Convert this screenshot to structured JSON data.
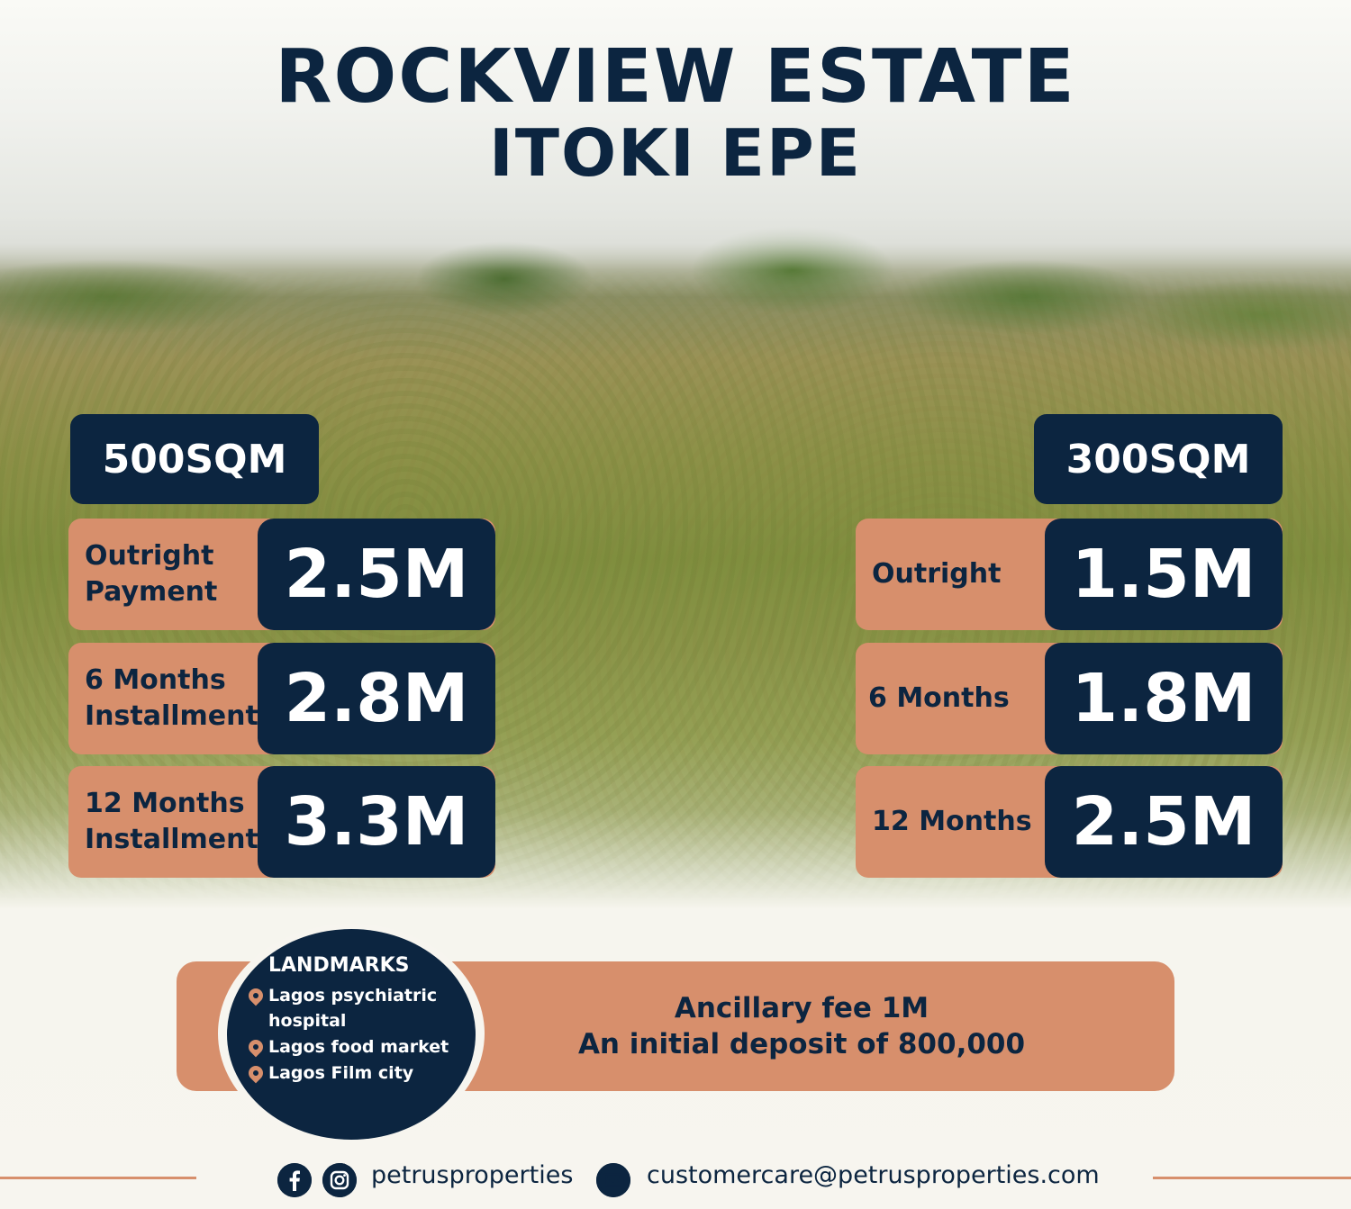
{
  "title": {
    "line1": "ROCKVIEW ESTATE",
    "line2": "ITOKI EPE"
  },
  "plan_500": {
    "size": "500SQM",
    "rows": [
      {
        "label_line1": "Outright",
        "label_line2": "Payment",
        "price": "2.5M"
      },
      {
        "label_line1": "6 Months",
        "label_line2": "Installment",
        "price": "2.8M"
      },
      {
        "label_line1": "12 Months",
        "label_line2": "Installment",
        "price": "3.3M"
      }
    ]
  },
  "plan_300": {
    "size": "300SQM",
    "rows": [
      {
        "label": "Outright",
        "price": "1.5M"
      },
      {
        "label": "6 Months",
        "price": "1.8M"
      },
      {
        "label": "12 Months",
        "price": "2.5M"
      }
    ]
  },
  "landmarks": {
    "title": "LANDMARKS",
    "items": [
      {
        "line1": "Lagos psychiatric",
        "line2": "hospital"
      },
      {
        "line1": "Lagos food market",
        "line2": ""
      },
      {
        "line1": "Lagos Film city",
        "line2": ""
      }
    ]
  },
  "fees": {
    "ancillary": "Ancillary fee 1M",
    "deposit": "An initial deposit of 800,000"
  },
  "footer": {
    "social_handle": "petrusproperties",
    "email": "customercare@petrusproperties.com",
    "icons": [
      "facebook-icon",
      "instagram-icon",
      "mail-icon"
    ]
  },
  "colors": {
    "navy": "#0c2540",
    "accent": "#d78f6c",
    "background": "#f7f5ef"
  }
}
